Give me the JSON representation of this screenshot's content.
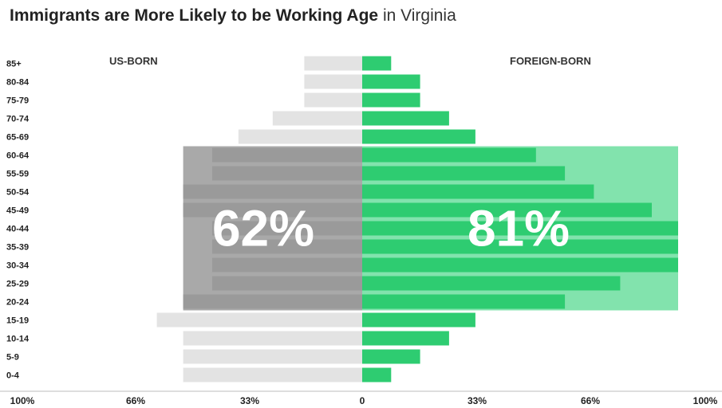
{
  "title": {
    "bold": "Immigrants are More Likely to be Working Age",
    "light": " in Virginia"
  },
  "chart_data": {
    "type": "bar",
    "orientation": "horizontal-pyramid",
    "title": "Immigrants are More Likely to be Working Age in Virginia",
    "categories": [
      "85+",
      "80-84",
      "75-79",
      "70-74",
      "65-69",
      "60-64",
      "55-59",
      "50-54",
      "45-49",
      "40-44",
      "35-39",
      "30-34",
      "25-29",
      "20-24",
      "15-19",
      "10-14",
      "5-9",
      "0-4"
    ],
    "series": [
      {
        "name": "US-BORN",
        "side": "left",
        "color": "#e3e3e3",
        "highlight_color": "#9a9a9a",
        "values": [
          22,
          22,
          22,
          34,
          47,
          57,
          57,
          68,
          68,
          57,
          57,
          57,
          57,
          68,
          78,
          68,
          68,
          68
        ]
      },
      {
        "name": "FOREIGN-BORN",
        "side": "right",
        "color": "#2ecc71",
        "highlight_color": "#2ecc71",
        "values": [
          11,
          22,
          22,
          33,
          43,
          66,
          77,
          88,
          110,
          120,
          120,
          120,
          98,
          77,
          43,
          33,
          22,
          11
        ]
      }
    ],
    "highlight": {
      "from": "60-64",
      "to": "20-24",
      "left_label": "62%",
      "right_label": "81%",
      "left_band_color": "#a9a9a9",
      "right_band_color": "#82e3ad",
      "left_band_extent": 68,
      "right_band_extent": 120
    },
    "x_axis": {
      "tick_labels": [
        "100%",
        "66%",
        "33%",
        "0",
        "33%",
        "66%",
        "100%"
      ]
    },
    "xlim": [
      -136,
      136
    ],
    "legend": [
      "US-BORN",
      "FOREIGN-BORN"
    ],
    "grid": false
  }
}
